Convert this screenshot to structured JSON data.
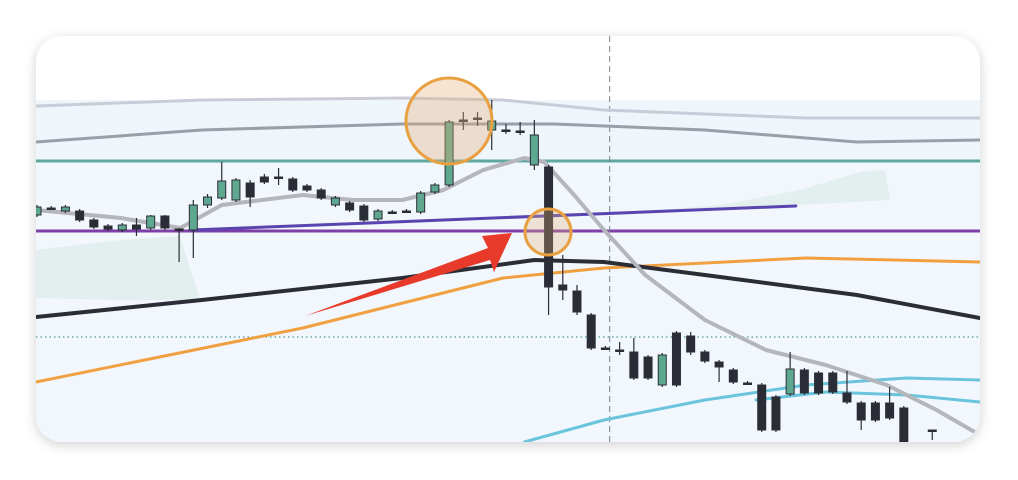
{
  "chart_data": {
    "type": "candlestick",
    "xlim": [
      -0.07,
      66.36
    ],
    "ylim": [
      0,
      406
    ],
    "up_color": "#5fa890",
    "down_color": "#2a2d36",
    "candles": {
      "x": [
        0,
        1,
        2,
        3,
        4,
        5,
        6,
        7,
        8,
        9,
        10,
        11,
        12,
        13,
        14,
        15,
        16,
        17,
        18,
        19,
        20,
        21,
        22,
        23,
        24,
        25,
        26,
        27,
        28,
        29,
        30,
        31,
        32,
        33,
        34,
        35,
        36,
        37,
        38,
        39,
        40,
        41,
        42,
        43,
        44,
        45,
        46,
        47,
        48,
        49,
        50,
        51,
        52,
        53,
        54,
        55,
        56,
        57,
        58,
        59,
        60,
        61,
        63
      ],
      "open": [
        227,
        234,
        231,
        231,
        222,
        216,
        212,
        217,
        214,
        226,
        213,
        212,
        237,
        244,
        242,
        259,
        265,
        265,
        263,
        256,
        252,
        237,
        239,
        236,
        223,
        230,
        231,
        230,
        250,
        257,
        322,
        324,
        312,
        312,
        311,
        277,
        275,
        157,
        151,
        127,
        94,
        92,
        90,
        85,
        57,
        109,
        106,
        90,
        80,
        72,
        59,
        57,
        45,
        48,
        72,
        69,
        69,
        49,
        39,
        39,
        39,
        34,
        12
      ],
      "high": [
        237,
        236,
        237,
        233,
        224,
        218,
        219,
        224,
        227,
        227,
        214,
        242,
        248,
        280,
        264,
        262,
        268,
        274,
        265,
        258,
        254,
        246,
        241,
        238,
        233,
        232,
        233,
        251,
        259,
        322,
        330,
        330,
        342,
        318,
        320,
        322,
        277,
        187,
        157,
        129,
        96,
        100,
        104,
        87,
        89,
        111,
        110,
        92,
        82,
        74,
        61,
        59,
        47,
        90,
        74,
        71,
        71,
        71,
        41,
        41,
        55,
        36,
        12
      ],
      "low": [
        225,
        232,
        229,
        220,
        213,
        211,
        210,
        206,
        212,
        212,
        180,
        184,
        234,
        242,
        240,
        235,
        258,
        257,
        250,
        250,
        242,
        235,
        230,
        220,
        221,
        228,
        229,
        228,
        248,
        255,
        312,
        316,
        292,
        308,
        307,
        272,
        127,
        142,
        127,
        92,
        92,
        87,
        62,
        62,
        55,
        55,
        87,
        79,
        60,
        58,
        57,
        10,
        10,
        46,
        47,
        47,
        48,
        38,
        12,
        20,
        22,
        0,
        2
      ],
      "close": [
        235,
        234,
        235,
        222,
        215,
        213,
        217,
        213,
        226,
        214,
        213,
        237,
        245,
        261,
        262,
        245,
        260,
        265,
        252,
        252,
        244,
        244,
        232,
        222,
        231,
        230,
        231,
        249,
        257,
        320,
        322,
        324,
        321,
        312,
        311,
        307,
        155,
        152,
        130,
        94,
        94,
        92,
        64,
        64,
        87,
        57,
        90,
        81,
        75,
        60,
        59,
        12,
        12,
        73,
        49,
        49,
        50,
        40,
        22,
        22,
        24,
        0,
        12
      ]
    },
    "lines": [
      {
        "color": "#c9ccd8",
        "width": 3,
        "x": [
          -0.07,
          11.6,
          25.7,
          32.8,
          39.9,
          54.1,
          66.36
        ],
        "values": [
          336,
          342,
          344,
          342,
          332,
          324,
          324
        ]
      },
      {
        "color": "#9a9ea8",
        "width": 3,
        "x": [
          -0.07,
          11.6,
          25.7,
          36.4,
          47,
          57.7,
          66.36
        ],
        "values": [
          300,
          312,
          318,
          318,
          312,
          300,
          302
        ]
      },
      {
        "color": "#f0a040",
        "width": 3,
        "x": [
          -0.07,
          18.7,
          32.8,
          39.9,
          54.1,
          66.36
        ],
        "values": [
          60,
          114,
          164,
          174,
          184,
          180
        ]
      },
      {
        "color": "#2a2d36",
        "width": 4,
        "x": [
          -0.07,
          11.6,
          25.7,
          35,
          39.9,
          47,
          57.7,
          66.36
        ],
        "values": [
          125,
          142,
          164,
          182,
          180,
          167,
          147,
          124
        ]
      },
      {
        "color": "#6ac4dc",
        "width": 3,
        "x": [
          34.3,
          39.9,
          47,
          54.1,
          61.2,
          66.36
        ],
        "values": [
          0,
          22,
          42,
          57,
          64,
          62
        ]
      },
      {
        "color": "#6ac4dc",
        "width": 3,
        "x": [
          50.6,
          55.5,
          61.2,
          66.36
        ],
        "values": [
          42,
          50,
          47,
          40
        ]
      },
      {
        "color": "#5a45b0",
        "width": 3,
        "x": [
          10.9,
          53.4
        ],
        "values": [
          212,
          236
        ]
      },
      {
        "color": "#b5b5bc",
        "width": 4,
        "x": [
          -0.07,
          5.9,
          10.1,
          13,
          18.7,
          22.2,
          25.7,
          28.6,
          31.4,
          34.3,
          35.7,
          37.8,
          39.9,
          42.8,
          47,
          51.3,
          55.5,
          59.8,
          63.3,
          66.36
        ],
        "values": [
          232,
          224,
          214,
          237,
          247,
          242,
          242,
          252,
          272,
          284,
          280,
          247,
          212,
          167,
          122,
          92,
          77,
          57,
          32,
          7
        ]
      }
    ],
    "hlines": [
      {
        "value": 281,
        "color": "#5fa8a0",
        "dash": false
      },
      {
        "value": 211,
        "color": "#7e3fa6",
        "dash": false
      },
      {
        "value": 105,
        "color": "#4a9a9a",
        "dash": true
      }
    ],
    "vline": {
      "x": 40.3,
      "color": "#7a8290"
    }
  }
}
